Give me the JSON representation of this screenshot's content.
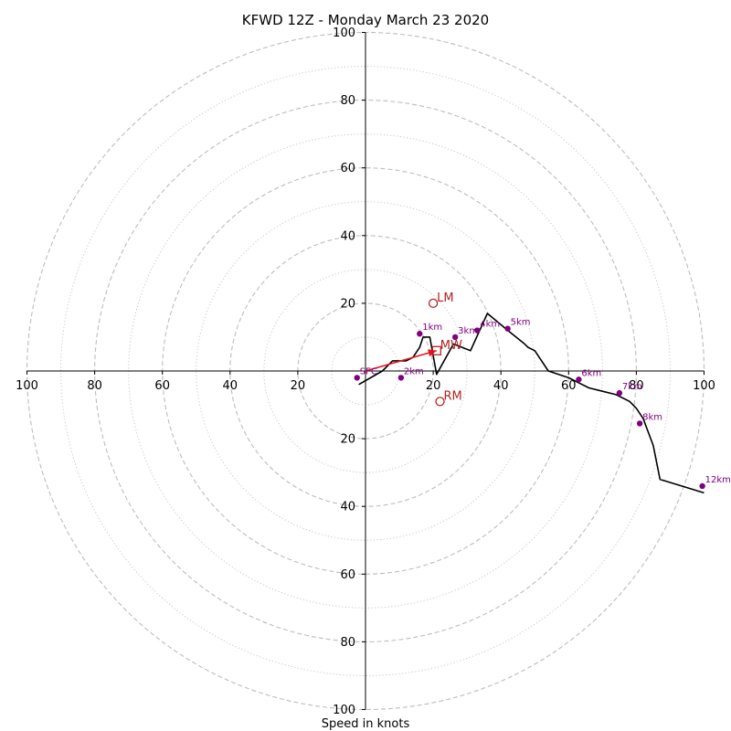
{
  "chart_data": {
    "type": "line",
    "title": "KFWD 12Z - Monday March 23 2020",
    "xlabel": "Speed in knots",
    "ylabel": "",
    "xlim": [
      -100,
      100
    ],
    "ylim": [
      -100,
      100
    ],
    "rings_dashed": [
      20,
      40,
      60,
      80,
      100
    ],
    "rings_dotted": [
      10,
      30,
      50,
      70,
      90
    ],
    "x_tick_labels": [
      "100",
      "80",
      "60",
      "40",
      "20",
      "20",
      "40",
      "60",
      "80",
      "100"
    ],
    "y_tick_labels": [
      "100",
      "80",
      "60",
      "40",
      "20",
      "20",
      "40",
      "60",
      "80",
      "100"
    ],
    "x_tick_values": [
      -100,
      -80,
      -60,
      -40,
      -20,
      20,
      40,
      60,
      80,
      100
    ],
    "y_tick_values": [
      100,
      80,
      60,
      40,
      20,
      -20,
      -40,
      -60,
      -80,
      -100
    ],
    "series": [
      {
        "color": "#000000",
        "x": [
          -2,
          5,
          7,
          8,
          12,
          14,
          16,
          17,
          19,
          21,
          26,
          31,
          36,
          42,
          47,
          48,
          50,
          52,
          54,
          60,
          66,
          70,
          74,
          78,
          80,
          82,
          85,
          87,
          100
        ],
        "y": [
          -4,
          0,
          2,
          3,
          3,
          4,
          7,
          10,
          10,
          -1,
          8,
          6,
          17,
          12,
          8,
          7,
          6,
          3,
          0,
          -2,
          -5,
          -6,
          -7,
          -9,
          -11,
          -14,
          -22,
          -32,
          -36
        ],
        "note_path": "trace"
      }
    ],
    "height_markers": {
      "color": "#800080",
      "points": [
        {
          "label": "1km",
          "x": 16,
          "y": 11
        },
        {
          "label": "2km",
          "x": 10.5,
          "y": -2
        },
        {
          "label": "3km",
          "x": 26.5,
          "y": 10
        },
        {
          "label": "4km",
          "x": 33,
          "y": 12
        },
        {
          "label": "5km",
          "x": 42,
          "y": 12.5
        },
        {
          "label": "6km",
          "x": 63,
          "y": -2.5
        },
        {
          "label": "7km",
          "x": 75,
          "y": -6.5
        },
        {
          "label": "8km",
          "x": 81,
          "y": -15.5
        },
        {
          "label": "12km",
          "x": 99.5,
          "y": -34
        },
        {
          "label": "SFC",
          "x": -2.5,
          "y": -2
        }
      ]
    },
    "extra_markers": {
      "color": "#b22222",
      "items": [
        {
          "label": "LM",
          "shape": "circle",
          "x": 20,
          "y": 20
        },
        {
          "label": "MW",
          "shape": "square",
          "x": 21,
          "y": 6
        },
        {
          "label": "RM",
          "shape": "circle",
          "x": 22,
          "y": -9
        }
      ]
    },
    "shear_vector": {
      "color": "#e8141e",
      "x0": 0,
      "y0": 0,
      "x1": 21,
      "y1": 6
    }
  }
}
